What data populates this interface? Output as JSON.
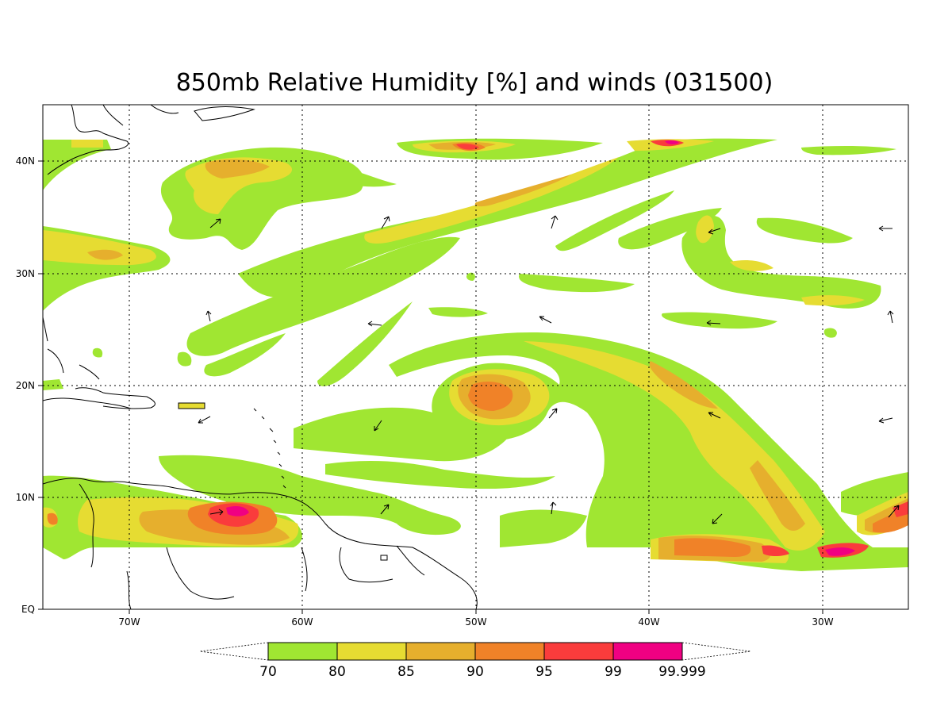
{
  "title": "850mb Relative Humidity [%] and winds (031500)",
  "map": {
    "lon_labels": [
      "70W",
      "60W",
      "50W",
      "40W",
      "30W"
    ],
    "lat_labels": [
      "40N",
      "30N",
      "20N",
      "10N",
      "EQ"
    ]
  },
  "colorbar": {
    "labels": [
      "70",
      "80",
      "85",
      "90",
      "95",
      "99",
      "99.999"
    ],
    "colors": [
      "#a0e632",
      "#e6dc32",
      "#e6af2d",
      "#f08228",
      "#fa3c3c",
      "#f00082"
    ]
  },
  "humidity_colors": {
    "rh70": "#a0e632",
    "rh80": "#e6dc32",
    "rh85": "#e6af2d",
    "rh90": "#f08228",
    "rh95": "#fa3c3c",
    "rh99": "#f00082"
  }
}
